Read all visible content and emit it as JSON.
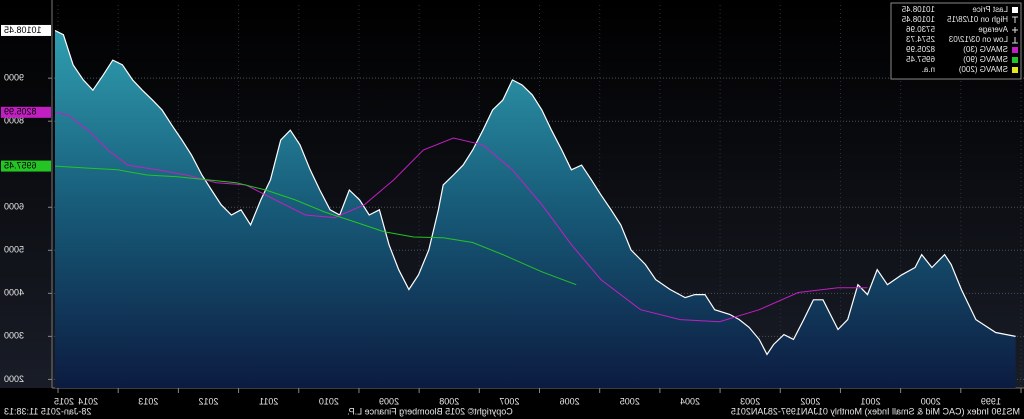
{
  "chart_data": {
    "type": "line",
    "subtitle": "MS190 Index  (CAC Mid & Small Index)  Monthly 01JAN1997-28JAN2015",
    "copyright": "Copyright© 2015 Bloomberg Finance L.P.",
    "timestamp": "28-Jan-2015 11:38:13",
    "xlim": [
      1999,
      2015.1
    ],
    "xticks": [
      1999,
      2000,
      2001,
      2002,
      2003,
      2004,
      2005,
      2006,
      2007,
      2008,
      2009,
      2010,
      2011,
      2012,
      2013,
      2014,
      2015
    ],
    "ylim": [
      1800,
      10700
    ],
    "yticks": [
      2000,
      3000,
      4000,
      5000,
      6000,
      8000,
      9000
    ],
    "grid": true,
    "mirrored": true,
    "legend": "top-right",
    "series": [
      {
        "name": "Last Price",
        "color": "#ffffff",
        "area": true,
        "callout_text": "#000000",
        "x": [
          1999.09,
          1999.42,
          1999.75,
          1999.99,
          2000.16,
          2000.27,
          2000.48,
          2000.65,
          2000.76,
          2000.98,
          2001.22,
          2001.39,
          2001.55,
          2001.71,
          2001.88,
          2002.04,
          2002.29,
          2002.45,
          2002.61,
          2002.78,
          2002.94,
          2003.11,
          2003.22,
          2003.35,
          2003.52,
          2003.68,
          2003.84,
          2004.09,
          2004.25,
          2004.42,
          2004.58,
          2004.83,
          2005.07,
          2005.24,
          2005.48,
          2005.65,
          2005.81,
          2005.98,
          2006.14,
          2006.3,
          2006.47,
          2006.63,
          2006.8,
          2006.96,
          2007.12,
          2007.29,
          2007.45,
          2007.61,
          2007.78,
          2007.94,
          2008.11,
          2008.27,
          2008.43,
          2008.6,
          2008.68,
          2008.84,
          2009.01,
          2009.17,
          2009.34,
          2009.5,
          2009.66,
          2009.83,
          2009.99,
          2010.16,
          2010.32,
          2010.48,
          2010.65,
          2010.81,
          2010.98,
          2011.14,
          2011.3,
          2011.47,
          2011.63,
          2011.8,
          2011.96,
          2012.12,
          2012.29,
          2012.45,
          2012.61,
          2012.78,
          2012.94,
          2013.11,
          2013.27,
          2013.43,
          2013.6,
          2013.76,
          2013.93,
          2014.09,
          2014.25,
          2014.42,
          2014.58,
          2014.75,
          2014.91,
          2015.05
        ],
        "values": [
          3000,
          3090,
          3390,
          4090,
          4670,
          4900,
          4600,
          4900,
          4600,
          4430,
          4200,
          4550,
          3970,
          4200,
          3390,
          3160,
          3850,
          3850,
          3390,
          2930,
          3040,
          2810,
          2580,
          2930,
          3210,
          3390,
          3510,
          3620,
          3970,
          3970,
          3900,
          4090,
          4320,
          4670,
          5010,
          5590,
          5940,
          6290,
          6640,
          6980,
          6870,
          7330,
          7790,
          8260,
          8610,
          8840,
          8960,
          8490,
          8260,
          7790,
          7330,
          6980,
          6750,
          6520,
          5940,
          5010,
          4430,
          4090,
          4550,
          5130,
          5940,
          5820,
          6170,
          6400,
          5820,
          5940,
          6400,
          6870,
          7450,
          7790,
          7560,
          6640,
          6170,
          5590,
          5940,
          5820,
          6060,
          6400,
          6750,
          7210,
          7560,
          7910,
          8260,
          8490,
          8720,
          8960,
          9310,
          9420,
          9070,
          8720,
          8960,
          9310,
          10010,
          10108.45
        ]
      },
      {
        "name": "SMAVG (30)",
        "color": "#c21fc2",
        "callout_text": "#000000",
        "x": [
          2001.55,
          2002.04,
          2002.7,
          2003.35,
          2004.01,
          2004.66,
          2005.32,
          2005.98,
          2006.47,
          2006.96,
          2007.45,
          2007.94,
          2008.43,
          2008.93,
          2009.42,
          2009.91,
          2010.4,
          2010.89,
          2011.39,
          2011.88,
          2012.37,
          2012.86,
          2013.35,
          2013.84,
          2014.17,
          2014.5,
          2014.83,
          2015.05
        ],
        "values": [
          4130,
          4130,
          4020,
          3620,
          3340,
          3390,
          3620,
          4320,
          5130,
          6060,
          6870,
          7450,
          7610,
          7330,
          6640,
          6060,
          5760,
          5820,
          6170,
          6520,
          6570,
          6750,
          6870,
          6980,
          7330,
          7790,
          8140,
          8205.99
        ]
      },
      {
        "name": "SMAVG (90)",
        "color": "#25c425",
        "callout_text": "#000000",
        "x": [
          2006.39,
          2006.96,
          2007.61,
          2008.11,
          2008.6,
          2009.09,
          2009.58,
          2010.07,
          2010.57,
          2011.06,
          2011.55,
          2012.04,
          2012.53,
          2013.02,
          2013.52,
          2014.01,
          2014.5,
          2015.05
        ],
        "values": [
          4200,
          4500,
          4900,
          5180,
          5290,
          5310,
          5430,
          5660,
          5890,
          6170,
          6400,
          6570,
          6640,
          6710,
          6750,
          6870,
          6910,
          6957.45
        ]
      },
      {
        "name": "SMAVG (200)",
        "color": "#e6e61e",
        "x": [],
        "values": [],
        "legend_value": "n.a."
      }
    ],
    "stats": [
      {
        "label": "High on 01/28/15",
        "value": 10108.45,
        "marker": "high"
      },
      {
        "label": "Average",
        "value": 5730.96,
        "marker": "average"
      },
      {
        "label": "Low on 03/12/03",
        "value": 2574.73,
        "marker": "low"
      }
    ]
  }
}
